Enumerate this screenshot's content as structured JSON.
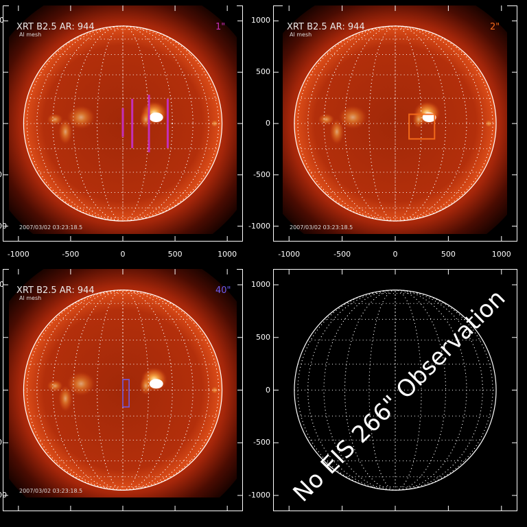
{
  "panels": [
    {
      "id": "p1",
      "header": "XRT B2.5 AR:  944",
      "subheader": "Al mesh",
      "date": "2007/03/02 03:23:18.5",
      "slit_label": "1\"",
      "slit_color": "#c42fb8",
      "slit_type": "multi-slit",
      "has_image": true,
      "show_x_axis": true,
      "show_y_axis": true
    },
    {
      "id": "p2",
      "header": "XRT B2.5 AR:  944",
      "subheader": "Al mesh",
      "date": "2007/03/02 03:23:18.5",
      "slit_label": "2\"",
      "slit_color": "#f26a1a",
      "slit_type": "box",
      "has_image": true,
      "show_x_axis": true,
      "show_y_axis": true
    },
    {
      "id": "p3",
      "header": "XRT B2.5 AR:  944",
      "subheader": "Al mesh",
      "date": "2007/03/02 03:23:18.5",
      "slit_label": "40\"",
      "slit_color": "#6e5cf0",
      "slit_type": "narrow-box",
      "has_image": true,
      "show_x_axis": false,
      "show_y_axis": true
    },
    {
      "id": "p4",
      "header": "",
      "subheader": "",
      "date": "",
      "slit_label": "",
      "slit_color": "#ffffff",
      "slit_type": "none",
      "has_image": false,
      "show_x_axis": false,
      "show_y_axis": true,
      "message": "No EIS 266\" Observation"
    }
  ],
  "axes": {
    "x_ticks": [
      "-1000",
      "-500",
      "0",
      "500",
      "1000"
    ],
    "y_ticks": [
      "1000",
      "500",
      "0",
      "-500",
      "-1000"
    ],
    "range": [
      -1150,
      1150
    ]
  },
  "colors": {
    "sun_bright": "#fff2c0",
    "sun_core": "#e26f18",
    "sun_body": "#c23a10",
    "sun_edge": "#7a1806",
    "grid": "#ffffff"
  }
}
